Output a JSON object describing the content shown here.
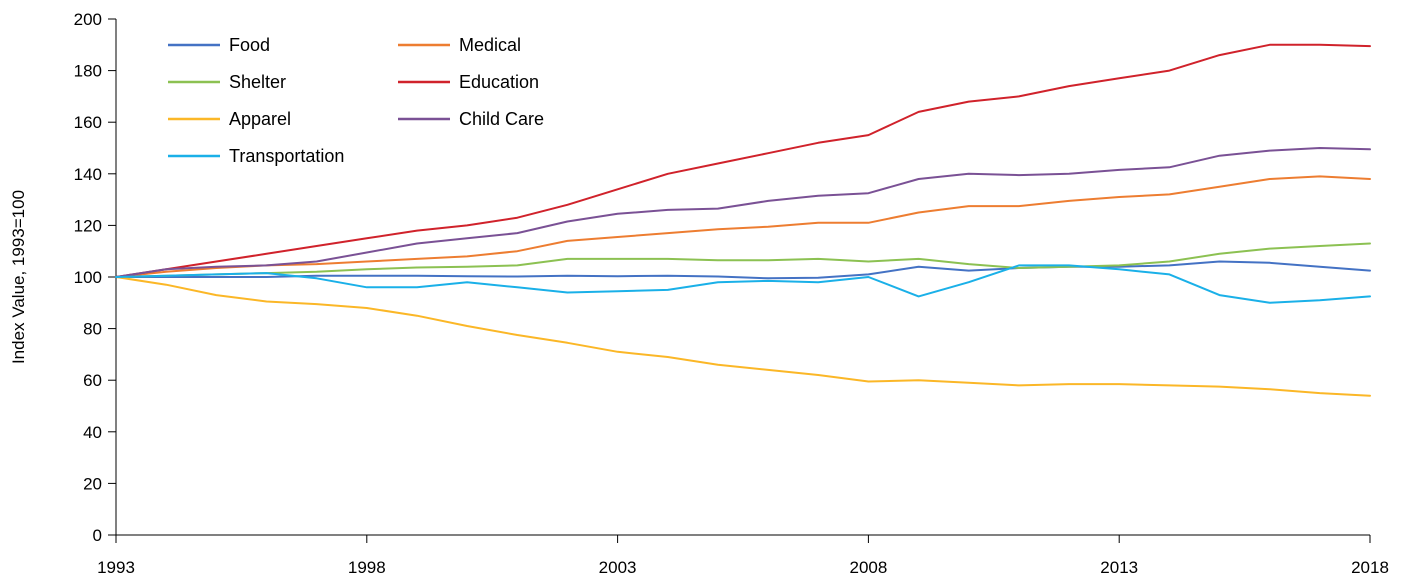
{
  "chart_data": {
    "type": "line",
    "title": "",
    "xlabel": "",
    "ylabel": "Index Value, 1993=100",
    "xlim": [
      1993,
      2018
    ],
    "ylim": [
      0,
      200
    ],
    "x_ticks": [
      1993,
      1998,
      2003,
      2008,
      2013,
      2018
    ],
    "y_ticks": [
      0,
      20,
      40,
      60,
      80,
      100,
      120,
      140,
      160,
      180,
      200
    ],
    "grid": false,
    "legend_position": "top-left",
    "x": [
      1993,
      1994,
      1995,
      1996,
      1997,
      1998,
      1999,
      2000,
      2001,
      2002,
      2003,
      2004,
      2005,
      2006,
      2007,
      2008,
      2009,
      2010,
      2011,
      2012,
      2013,
      2014,
      2015,
      2016,
      2017,
      2018
    ],
    "series": [
      {
        "name": "Food",
        "color": "#4472c4",
        "values": [
          100,
          100,
          100,
          100,
          100.5,
          100.5,
          100.5,
          100.3,
          100.2,
          100.5,
          100.3,
          100.5,
          100.2,
          99.5,
          99.7,
          101,
          104,
          102.5,
          103.5,
          104,
          104,
          104.5,
          106,
          105.5,
          104,
          102.5
        ]
      },
      {
        "name": "Medical",
        "color": "#ed7d31",
        "values": [
          100,
          102,
          103.5,
          104.5,
          105,
          106,
          107,
          108,
          110,
          114,
          115.5,
          117,
          118.5,
          119.5,
          121,
          121,
          125,
          127.5,
          127.5,
          129.5,
          131,
          132,
          135,
          138,
          139,
          138
        ]
      },
      {
        "name": "Shelter",
        "color": "#8cc152",
        "values": [
          100,
          100.5,
          101,
          101.5,
          102,
          103,
          103.7,
          104,
          104.5,
          107,
          107,
          107,
          106.5,
          106.5,
          107,
          106,
          107,
          105,
          103.5,
          104,
          104.5,
          106,
          109,
          111,
          112,
          113
        ]
      },
      {
        "name": "Education",
        "color": "#d0222b",
        "values": [
          100,
          103,
          106,
          109,
          112,
          115,
          118,
          120,
          123,
          128,
          134,
          140,
          144,
          148,
          152,
          155,
          164,
          168,
          170,
          174,
          177,
          180,
          186,
          190,
          190,
          189.5
        ]
      },
      {
        "name": "Apparel",
        "color": "#fbb727",
        "values": [
          100,
          97,
          93,
          90.5,
          89.5,
          88,
          85,
          81,
          77.5,
          74.5,
          71,
          69,
          66,
          64,
          62,
          59.5,
          60,
          59,
          58,
          58.5,
          58.5,
          58,
          57.5,
          56.5,
          55,
          54
        ]
      },
      {
        "name": "Child Care",
        "color": "#7a5195",
        "values": [
          100,
          103,
          104,
          104.5,
          106,
          109.5,
          113,
          115,
          117,
          121.5,
          124.5,
          126,
          126.5,
          129.5,
          131.5,
          132.5,
          138,
          140,
          139.5,
          140,
          141.5,
          142.5,
          147,
          149,
          150,
          149.5
        ]
      },
      {
        "name": "Transportation",
        "color": "#1ab0e8",
        "values": [
          100,
          100.5,
          101,
          101.5,
          99.5,
          96,
          96,
          98,
          96,
          94,
          94.5,
          95,
          98,
          98.5,
          98,
          100,
          92.5,
          98,
          104.5,
          104.5,
          103,
          101,
          93,
          90,
          91,
          92.5
        ]
      }
    ]
  }
}
